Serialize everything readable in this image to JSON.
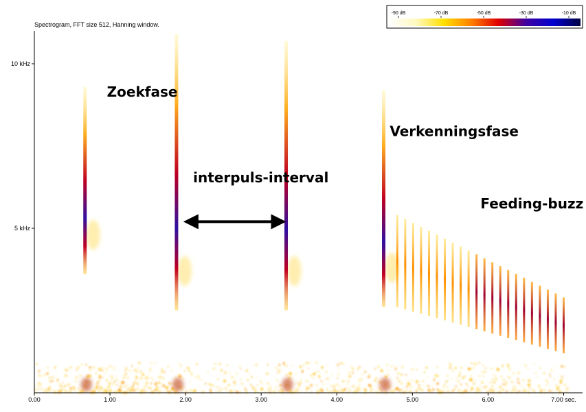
{
  "chart_data": {
    "type": "heatmap",
    "title": "Spectrogram, FFT size 512, Hanning window.",
    "x_unit": "sec.",
    "xlim": [
      0,
      7.25
    ],
    "x_ticks": [
      "0.00",
      "1.00",
      "2.00",
      "3.00",
      "4.00",
      "5.00",
      "6.00",
      "7.00 sec."
    ],
    "x_tick_values": [
      0,
      1,
      2,
      3,
      4,
      5,
      6,
      7
    ],
    "ylim": [
      0,
      11
    ],
    "y_ticks": [
      "5 kHz",
      "10 kHz"
    ],
    "y_tick_values": [
      5,
      10
    ],
    "colorbar": {
      "labels": [
        "-90 dB",
        "-70 dB",
        "-50 dB",
        "-30 dB",
        "-10 dB"
      ],
      "colors": [
        "#ffffff",
        "#fff9c0",
        "#ffe000",
        "#ff8000",
        "#e00000",
        "#4000a0",
        "#0000d0",
        "#000040"
      ]
    },
    "search_pulses": [
      {
        "t": 0.67,
        "f_low": 3.6,
        "f_high": 9.3,
        "peak": 5.0
      },
      {
        "t": 1.88,
        "f_low": 2.5,
        "f_high": 10.9,
        "peak": 6.0
      },
      {
        "t": 3.33,
        "f_low": 2.5,
        "f_high": 10.7,
        "peak": 6.0
      },
      {
        "t": 4.62,
        "f_low": 2.6,
        "f_high": 9.2,
        "peak": 6.0
      }
    ],
    "buzz": {
      "t_start": 4.8,
      "t_end": 7.0,
      "count": 22,
      "f_high_start": 5.4,
      "f_high_end": 2.9,
      "f_low_start": 2.6,
      "f_low_end": 1.2
    },
    "interval_arrow": {
      "t_start": 1.97,
      "t_end": 3.33,
      "f": 5.2
    },
    "annotations": [
      {
        "text": "Zoekfase",
        "t": 0.96,
        "f": 9.0
      },
      {
        "text": "interpuls-interval",
        "t": 2.1,
        "f": 6.4
      },
      {
        "text": "Verkenningsfase",
        "t": 4.7,
        "f": 7.8
      },
      {
        "text": "Feeding-buzz",
        "t": 5.9,
        "f": 5.6
      }
    ],
    "colors": {
      "axis": "#000000",
      "noise": "#ffd23a"
    }
  }
}
